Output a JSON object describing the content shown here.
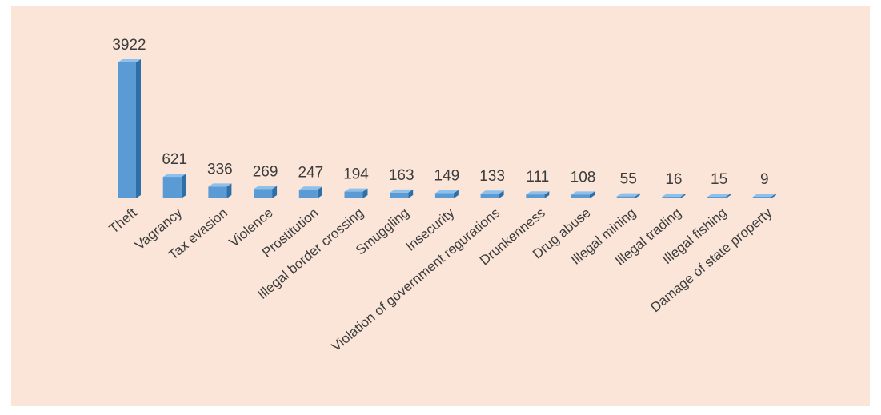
{
  "chart_data": {
    "type": "bar",
    "title": "",
    "xlabel": "",
    "ylabel": "",
    "categories": [
      "Theft",
      "Vagrancy",
      "Tax evasion",
      "Violence",
      "Prostitution",
      "Illegal border crossing",
      "Smuggling",
      "Insecurity",
      "Violation of government regurations",
      "Drunkenness",
      "Drug abuse",
      "Illegal mining",
      "Illegal trading",
      "Illegal fishing",
      "Damage of state property"
    ],
    "values": [
      3922,
      621,
      336,
      269,
      247,
      194,
      163,
      149,
      133,
      111,
      108,
      55,
      16,
      15,
      9
    ],
    "data_labels": [
      "3922",
      "621",
      "336",
      "269",
      "247",
      "194",
      "163",
      "149",
      "133",
      "111",
      "108",
      "55",
      "16",
      "15",
      "9"
    ],
    "grid": false,
    "legend": "none",
    "bar_color": "#5b9bd5",
    "bar_side_color": "#2f6fa8",
    "bar_top_color": "#8ec0ea",
    "background_color": "#fae5d8"
  }
}
